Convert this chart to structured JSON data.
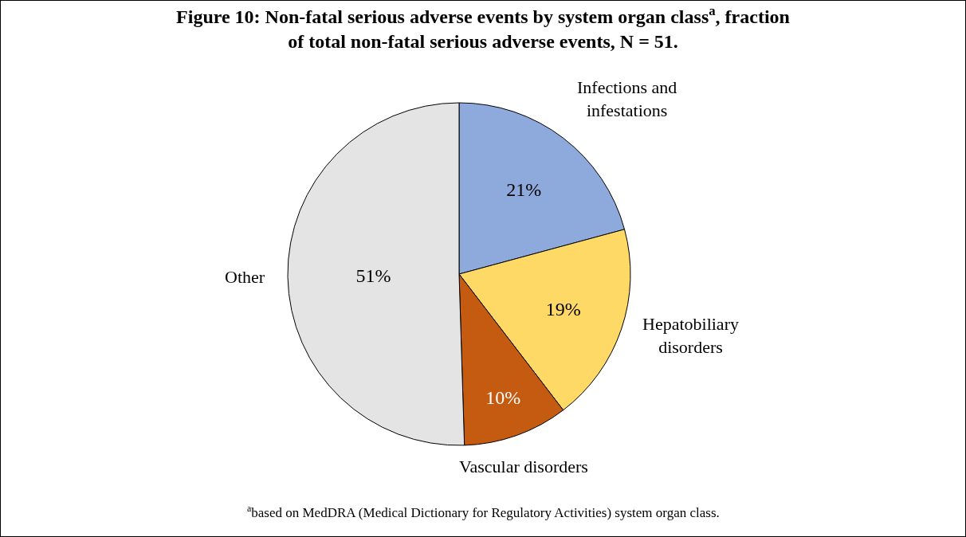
{
  "chart_data": {
    "type": "pie",
    "title": "Figure 10: Non-fatal serious adverse events by system organ class$^{a}$, fraction\nof total non-fatal serious adverse events, N = 51.",
    "categories": [
      "Infections and\ninfestations",
      "Hepatobiliary\ndisorders",
      "Vascular disorders",
      "Other"
    ],
    "values": [
      21,
      19,
      10,
      51
    ],
    "value_labels": [
      "21%",
      "19%",
      "10%",
      "51%"
    ],
    "colors": [
      "#8eaadc",
      "#ffd966",
      "#c55a11",
      "#e4e4e4"
    ],
    "legend": false,
    "annotations": [
      "$^{a}$based on MedDRA (Medical Dictionary for Regulatory Activities) system organ class."
    ]
  }
}
